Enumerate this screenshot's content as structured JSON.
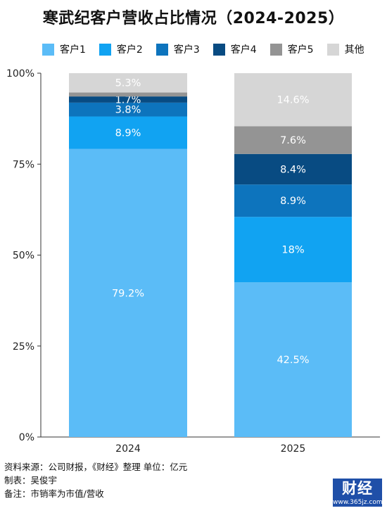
{
  "title": "寒武纪客户营收占比情况（2024-2025）",
  "legend": [
    {
      "name": "客户1",
      "color": "#5bbcf7"
    },
    {
      "name": "客户2",
      "color": "#11a3f2"
    },
    {
      "name": "客户3",
      "color": "#0d74bd"
    },
    {
      "name": "客户4",
      "color": "#084b82"
    },
    {
      "name": "客户5",
      "color": "#949494"
    },
    {
      "name": "其他",
      "color": "#d6d6d6"
    }
  ],
  "chart_data": {
    "type": "bar",
    "stacked": true,
    "categories": [
      "2024",
      "2025"
    ],
    "series": [
      {
        "name": "客户1",
        "values": [
          79.2,
          42.5
        ],
        "labels": [
          "79.2%",
          "42.5%"
        ]
      },
      {
        "name": "客户2",
        "values": [
          8.9,
          18
        ],
        "labels": [
          "8.9%",
          "18%"
        ]
      },
      {
        "name": "客户3",
        "values": [
          3.8,
          8.9
        ],
        "labels": [
          "3.8%",
          "8.9%"
        ]
      },
      {
        "name": "客户4",
        "values": [
          1.7,
          8.4
        ],
        "labels": [
          "1.7%",
          "8.4%"
        ]
      },
      {
        "name": "客户5",
        "values": [
          1.1,
          7.6
        ],
        "labels": [
          "",
          "7.6%"
        ]
      },
      {
        "name": "其他",
        "values": [
          5.3,
          14.6
        ],
        "labels": [
          "5.3%",
          "14.6%"
        ]
      }
    ],
    "yticks": [
      "0%",
      "25%",
      "50%",
      "75%",
      "100%"
    ],
    "ylim": [
      0,
      100
    ],
    "legend_position": "top",
    "grid": false
  },
  "footer": {
    "source": "资料来源：公司财报，《财经》整理   单位：亿元",
    "author": "制表：吴俊宇",
    "note": "备注：市销率为市值/营收"
  },
  "logo": {
    "text": "财经",
    "watermark": "www.365jz.com"
  }
}
